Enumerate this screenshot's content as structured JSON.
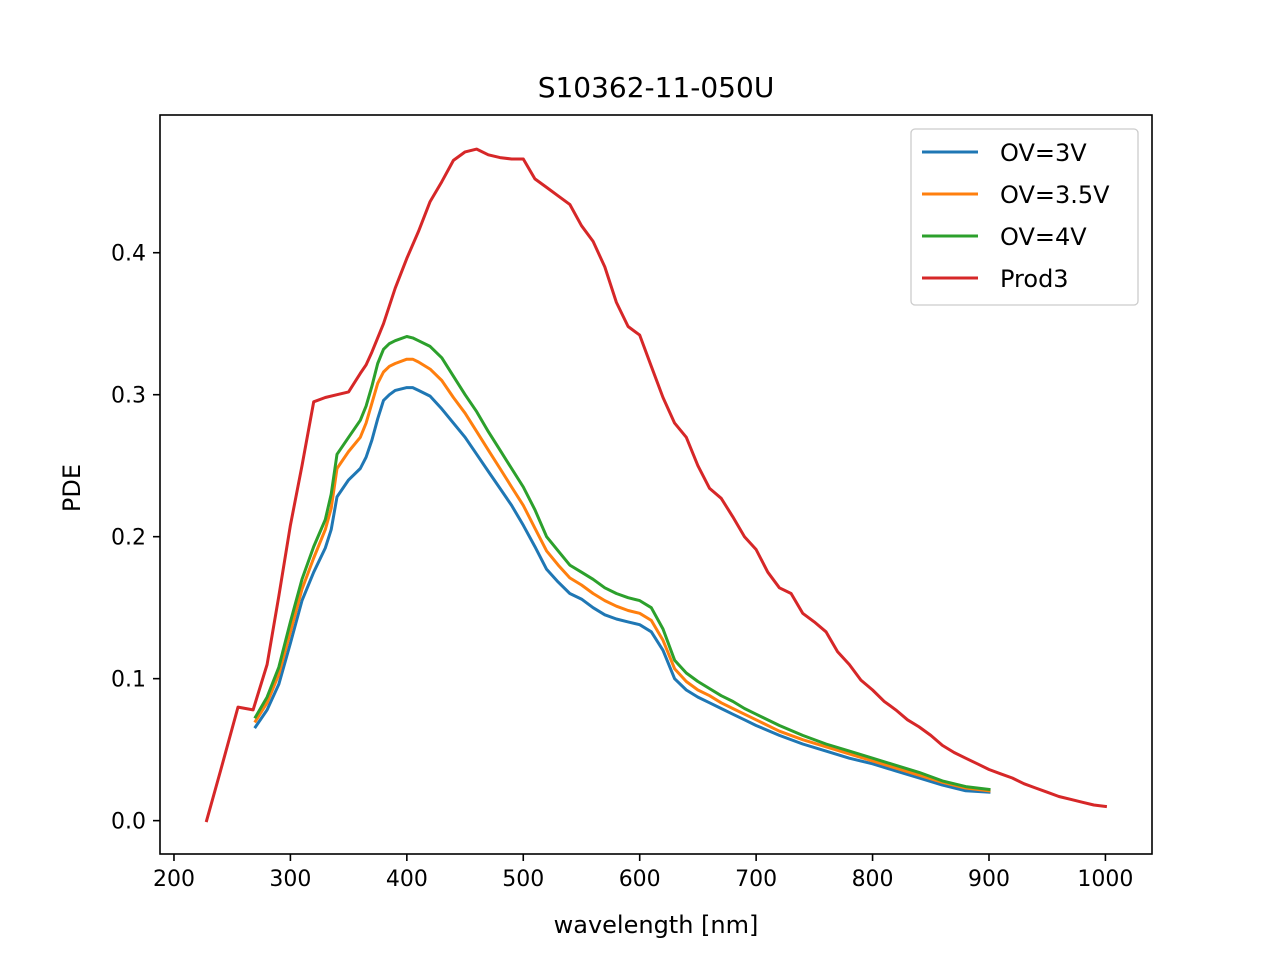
{
  "chart_data": {
    "type": "line",
    "title": "S10362-11-050U",
    "xlabel": "wavelength [nm]",
    "ylabel": "PDE",
    "xlim": [
      188,
      1040
    ],
    "ylim": [
      -0.0235,
      0.497
    ],
    "xticks": [
      200,
      300,
      400,
      500,
      600,
      700,
      800,
      900,
      1000
    ],
    "yticks": [
      0.0,
      0.1,
      0.2,
      0.3,
      0.4
    ],
    "xtick_labels": [
      "200",
      "300",
      "400",
      "500",
      "600",
      "700",
      "800",
      "900",
      "1000"
    ],
    "ytick_labels": [
      "0.0",
      "0.1",
      "0.2",
      "0.3",
      "0.4"
    ],
    "grid": false,
    "legend_position": "upper right",
    "series": [
      {
        "name": "OV=3V",
        "color": "#1f77b4",
        "x": [
          270,
          280,
          290,
          300,
          310,
          320,
          330,
          335,
          340,
          350,
          360,
          365,
          370,
          375,
          380,
          385,
          390,
          400,
          405,
          410,
          420,
          430,
          440,
          450,
          460,
          470,
          480,
          490,
          500,
          510,
          520,
          530,
          540,
          550,
          560,
          570,
          580,
          590,
          600,
          610,
          620,
          630,
          640,
          650,
          660,
          670,
          680,
          690,
          700,
          720,
          740,
          760,
          780,
          800,
          820,
          840,
          860,
          880,
          900
        ],
        "y": [
          0.066,
          0.078,
          0.096,
          0.125,
          0.155,
          0.175,
          0.192,
          0.205,
          0.228,
          0.24,
          0.248,
          0.256,
          0.268,
          0.283,
          0.296,
          0.3,
          0.303,
          0.305,
          0.305,
          0.303,
          0.299,
          0.29,
          0.28,
          0.27,
          0.258,
          0.246,
          0.234,
          0.222,
          0.208,
          0.193,
          0.177,
          0.168,
          0.16,
          0.156,
          0.15,
          0.145,
          0.142,
          0.14,
          0.138,
          0.133,
          0.12,
          0.1,
          0.092,
          0.087,
          0.083,
          0.079,
          0.075,
          0.071,
          0.067,
          0.06,
          0.054,
          0.049,
          0.044,
          0.04,
          0.035,
          0.03,
          0.025,
          0.021,
          0.02
        ]
      },
      {
        "name": "OV=3.5V",
        "color": "#ff7f0e",
        "x": [
          270,
          280,
          290,
          300,
          310,
          320,
          330,
          335,
          340,
          350,
          360,
          365,
          370,
          375,
          380,
          385,
          390,
          400,
          405,
          410,
          420,
          430,
          440,
          450,
          460,
          470,
          480,
          490,
          500,
          510,
          520,
          530,
          540,
          550,
          560,
          570,
          580,
          590,
          600,
          610,
          620,
          630,
          640,
          650,
          660,
          670,
          680,
          690,
          700,
          720,
          740,
          760,
          780,
          800,
          820,
          840,
          860,
          880,
          900
        ],
        "y": [
          0.07,
          0.083,
          0.103,
          0.133,
          0.163,
          0.185,
          0.205,
          0.22,
          0.248,
          0.26,
          0.27,
          0.28,
          0.294,
          0.308,
          0.316,
          0.32,
          0.322,
          0.325,
          0.325,
          0.323,
          0.318,
          0.31,
          0.298,
          0.287,
          0.274,
          0.261,
          0.248,
          0.235,
          0.222,
          0.206,
          0.19,
          0.18,
          0.171,
          0.166,
          0.16,
          0.155,
          0.151,
          0.148,
          0.146,
          0.141,
          0.127,
          0.107,
          0.098,
          0.092,
          0.088,
          0.083,
          0.079,
          0.075,
          0.071,
          0.063,
          0.057,
          0.052,
          0.047,
          0.042,
          0.037,
          0.032,
          0.027,
          0.023,
          0.021
        ]
      },
      {
        "name": "OV=4V",
        "color": "#2ca02c",
        "x": [
          270,
          280,
          290,
          300,
          310,
          320,
          330,
          335,
          340,
          350,
          360,
          365,
          370,
          375,
          380,
          385,
          390,
          400,
          405,
          410,
          420,
          430,
          440,
          450,
          460,
          470,
          480,
          490,
          500,
          510,
          520,
          530,
          540,
          550,
          560,
          570,
          580,
          590,
          600,
          610,
          620,
          630,
          640,
          650,
          660,
          670,
          680,
          690,
          700,
          720,
          740,
          760,
          780,
          800,
          820,
          840,
          860,
          880,
          900
        ],
        "y": [
          0.073,
          0.087,
          0.108,
          0.14,
          0.17,
          0.193,
          0.212,
          0.23,
          0.258,
          0.27,
          0.282,
          0.292,
          0.306,
          0.322,
          0.332,
          0.336,
          0.338,
          0.341,
          0.34,
          0.338,
          0.334,
          0.326,
          0.313,
          0.3,
          0.288,
          0.274,
          0.261,
          0.248,
          0.235,
          0.219,
          0.2,
          0.19,
          0.18,
          0.175,
          0.17,
          0.164,
          0.16,
          0.157,
          0.155,
          0.15,
          0.135,
          0.113,
          0.104,
          0.098,
          0.093,
          0.088,
          0.084,
          0.079,
          0.075,
          0.067,
          0.06,
          0.054,
          0.049,
          0.044,
          0.039,
          0.034,
          0.028,
          0.024,
          0.022
        ]
      },
      {
        "name": "Prod3",
        "color": "#d62728",
        "x": [
          228,
          240,
          255,
          268,
          280,
          290,
          300,
          310,
          320,
          330,
          340,
          350,
          360,
          365,
          370,
          380,
          390,
          400,
          410,
          420,
          430,
          440,
          450,
          460,
          470,
          480,
          490,
          500,
          510,
          520,
          530,
          540,
          550,
          560,
          570,
          580,
          590,
          600,
          610,
          620,
          630,
          640,
          650,
          660,
          670,
          680,
          690,
          700,
          710,
          720,
          730,
          740,
          750,
          760,
          770,
          780,
          790,
          800,
          810,
          820,
          830,
          840,
          850,
          860,
          870,
          880,
          890,
          900,
          910,
          920,
          930,
          940,
          950,
          960,
          970,
          980,
          990,
          1000
        ],
        "y": [
          0.0,
          0.035,
          0.08,
          0.078,
          0.11,
          0.158,
          0.208,
          0.25,
          0.295,
          0.298,
          0.3,
          0.302,
          0.315,
          0.321,
          0.33,
          0.35,
          0.375,
          0.396,
          0.415,
          0.436,
          0.45,
          0.465,
          0.471,
          0.473,
          0.469,
          0.467,
          0.466,
          0.466,
          0.452,
          0.446,
          0.44,
          0.434,
          0.419,
          0.408,
          0.39,
          0.365,
          0.348,
          0.342,
          0.32,
          0.298,
          0.28,
          0.27,
          0.25,
          0.234,
          0.227,
          0.214,
          0.2,
          0.191,
          0.175,
          0.164,
          0.16,
          0.146,
          0.14,
          0.133,
          0.119,
          0.11,
          0.099,
          0.092,
          0.084,
          0.078,
          0.071,
          0.066,
          0.06,
          0.053,
          0.048,
          0.044,
          0.04,
          0.036,
          0.033,
          0.03,
          0.026,
          0.023,
          0.02,
          0.017,
          0.015,
          0.013,
          0.011,
          0.01
        ]
      }
    ]
  }
}
